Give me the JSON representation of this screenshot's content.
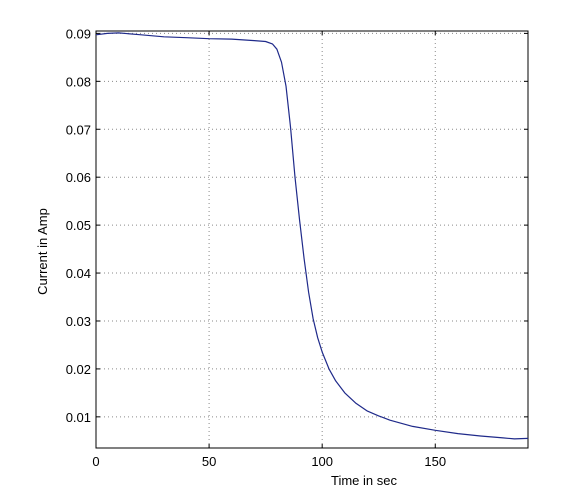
{
  "chart_data": {
    "type": "line",
    "title": "",
    "xlabel": "Time in sec",
    "ylabel": "Current in Amp",
    "xlim": [
      0,
      191
    ],
    "ylim": [
      0.0035,
      0.0905
    ],
    "xticks": [
      0,
      50,
      100,
      150
    ],
    "xtick_labels": [
      "0",
      "50",
      "100",
      "150"
    ],
    "yticks": [
      0.01,
      0.02,
      0.03,
      0.04,
      0.05,
      0.06,
      0.07,
      0.08,
      0.09
    ],
    "ytick_labels": [
      "0.01",
      "0.02",
      "0.03",
      "0.04",
      "0.05",
      "0.06",
      "0.07",
      "0.08",
      "0.09"
    ],
    "grid": true,
    "grid_style": "dotted",
    "line_color": "#1f2a8a",
    "series": [
      {
        "name": "",
        "x": [
          0,
          5,
          10,
          20,
          30,
          40,
          50,
          60,
          70,
          75,
          78,
          80,
          82,
          84,
          86,
          88,
          90,
          92,
          94,
          96,
          98,
          100,
          103,
          106,
          110,
          115,
          120,
          125,
          130,
          140,
          150,
          160,
          170,
          180,
          185,
          191
        ],
        "y": [
          0.0897,
          0.09,
          0.0901,
          0.0897,
          0.0893,
          0.0891,
          0.0889,
          0.0888,
          0.0885,
          0.0883,
          0.0878,
          0.0867,
          0.084,
          0.079,
          0.0705,
          0.06,
          0.051,
          0.043,
          0.036,
          0.0305,
          0.0265,
          0.0235,
          0.02,
          0.0175,
          0.015,
          0.0128,
          0.0112,
          0.0102,
          0.0093,
          0.008,
          0.0072,
          0.0065,
          0.006,
          0.0056,
          0.0054,
          0.0055
        ]
      }
    ]
  }
}
